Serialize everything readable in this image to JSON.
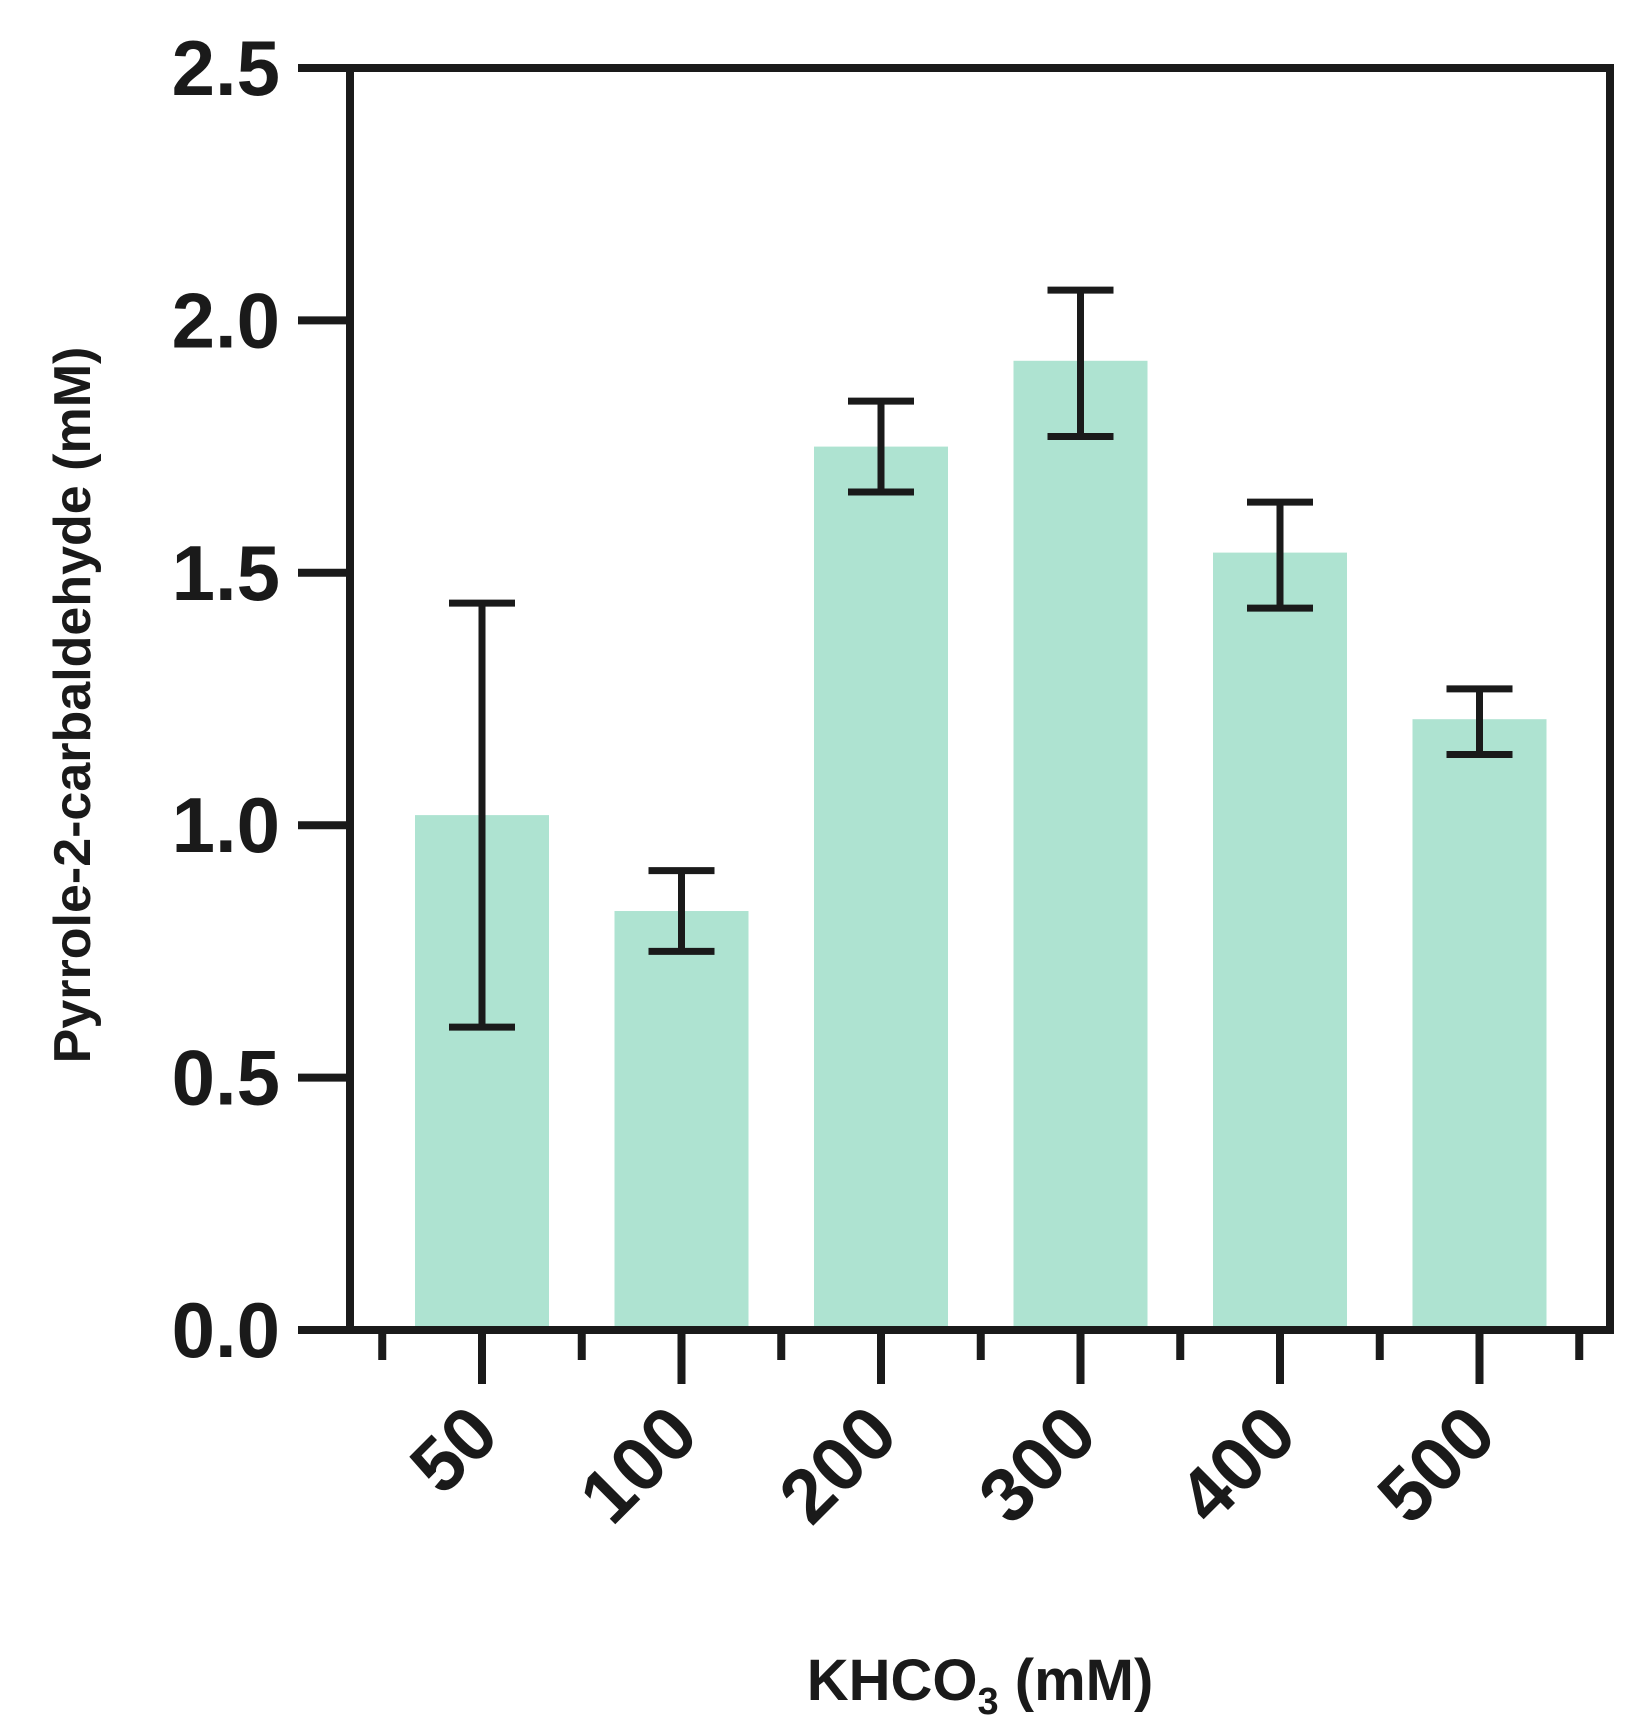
{
  "chart_data": {
    "type": "bar",
    "title": "",
    "categories": [
      "50",
      "100",
      "200",
      "300",
      "400",
      "500"
    ],
    "values": [
      1.02,
      0.83,
      1.75,
      1.92,
      1.54,
      1.21
    ],
    "error_low": [
      0.6,
      0.75,
      1.66,
      1.77,
      1.43,
      1.14
    ],
    "error_high": [
      1.44,
      0.91,
      1.84,
      2.06,
      1.64,
      1.27
    ],
    "xlabel_main": "KHCO",
    "xlabel_sub": "3",
    "xlabel_unit": " (mM)",
    "ylabel": "Pyrrole-2-carbaldehyde (mM)",
    "ylim": [
      0,
      2.5
    ],
    "yticks": [
      "0.0",
      "0.5",
      "1.0",
      "1.5",
      "2.0",
      "2.5"
    ],
    "grid": false,
    "legend": "none",
    "bar_color": "#aee3d1",
    "axis_color": "#1a1a1a"
  }
}
